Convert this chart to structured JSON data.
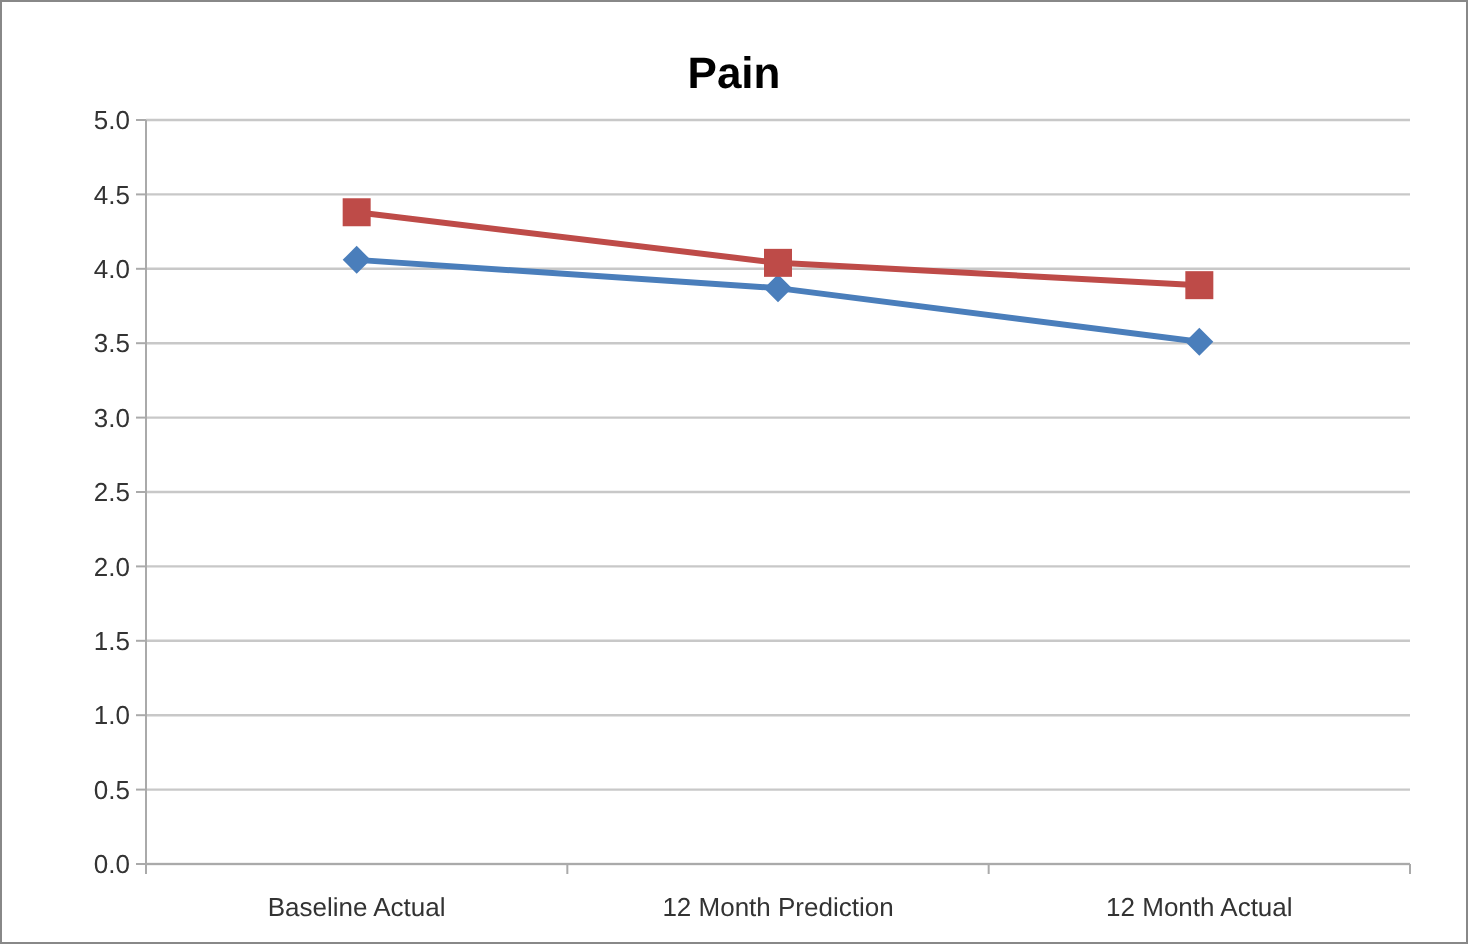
{
  "chart_data": {
    "type": "line",
    "title": "Pain",
    "categories": [
      "Baseline Actual",
      "12 Month Prediction",
      "12 Month Actual"
    ],
    "series": [
      {
        "color": "#4a7ebb",
        "values": [
          4.06,
          3.87,
          3.51
        ],
        "marker": "diamond"
      },
      {
        "color": "#be4b48",
        "values": [
          4.38,
          4.04,
          3.89
        ],
        "marker": "square"
      }
    ],
    "ylim": [
      0,
      5
    ],
    "yticks": [
      {
        "value": 0,
        "label": "0.0"
      },
      {
        "value": 0.5,
        "label": "0.5"
      },
      {
        "value": 1,
        "label": "1.0"
      },
      {
        "value": 1.5,
        "label": "1.5"
      },
      {
        "value": 2,
        "label": "2.0"
      },
      {
        "value": 2.5,
        "label": "2.5"
      },
      {
        "value": 3,
        "label": "3.0"
      },
      {
        "value": 3.5,
        "label": "3.5"
      },
      {
        "value": 4,
        "label": "4.0"
      },
      {
        "value": 4.5,
        "label": "4.5"
      },
      {
        "value": 5,
        "label": "5.0"
      }
    ],
    "grid": "y",
    "line_style": "solid"
  }
}
